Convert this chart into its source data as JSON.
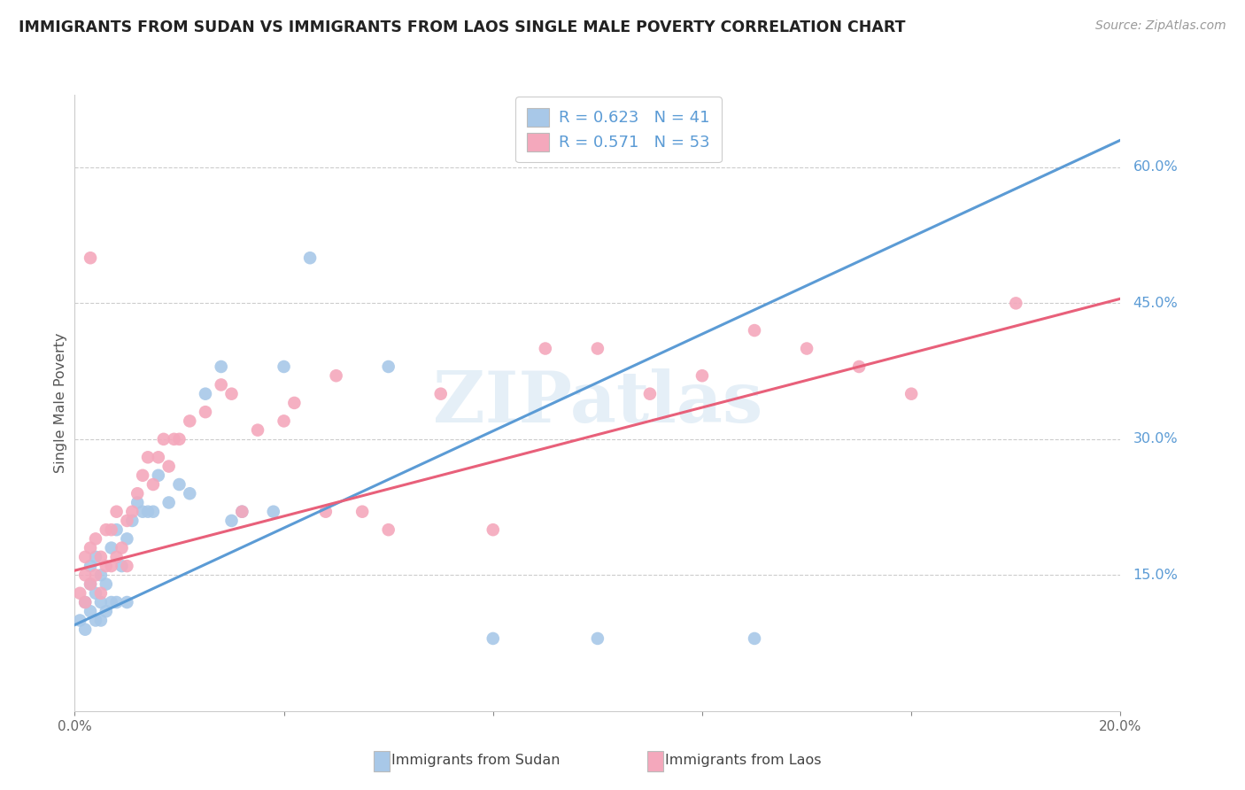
{
  "title": "IMMIGRANTS FROM SUDAN VS IMMIGRANTS FROM LAOS SINGLE MALE POVERTY CORRELATION CHART",
  "source": "Source: ZipAtlas.com",
  "ylabel": "Single Male Poverty",
  "xlim": [
    0.0,
    0.2
  ],
  "ylim": [
    0.0,
    0.68
  ],
  "ytick_labels": [
    "15.0%",
    "30.0%",
    "45.0%",
    "60.0%"
  ],
  "ytick_values": [
    0.15,
    0.3,
    0.45,
    0.6
  ],
  "background_color": "#ffffff",
  "watermark": "ZIPatlas",
  "sudan_color": "#a8c8e8",
  "laos_color": "#f4a8bc",
  "sudan_line_color": "#5b9bd5",
  "laos_line_color": "#e8607a",
  "dashed_line_color": "#c0c0c0",
  "R_sudan": 0.623,
  "N_sudan": 41,
  "R_laos": 0.571,
  "N_laos": 53,
  "sudan_line_x0": 0.0,
  "sudan_line_y0": 0.095,
  "sudan_line_x1": 0.2,
  "sudan_line_y1": 0.63,
  "laos_line_x0": 0.0,
  "laos_line_y0": 0.155,
  "laos_line_x1": 0.2,
  "laos_line_y1": 0.455,
  "sudan_x": [
    0.001,
    0.002,
    0.002,
    0.003,
    0.003,
    0.003,
    0.004,
    0.004,
    0.004,
    0.005,
    0.005,
    0.005,
    0.006,
    0.006,
    0.007,
    0.007,
    0.008,
    0.008,
    0.009,
    0.01,
    0.01,
    0.011,
    0.012,
    0.013,
    0.014,
    0.015,
    0.016,
    0.018,
    0.02,
    0.022,
    0.025,
    0.028,
    0.03,
    0.032,
    0.038,
    0.04,
    0.045,
    0.06,
    0.08,
    0.1,
    0.13
  ],
  "sudan_y": [
    0.1,
    0.09,
    0.12,
    0.11,
    0.14,
    0.16,
    0.1,
    0.13,
    0.17,
    0.1,
    0.12,
    0.15,
    0.11,
    0.14,
    0.12,
    0.18,
    0.12,
    0.2,
    0.16,
    0.12,
    0.19,
    0.21,
    0.23,
    0.22,
    0.22,
    0.22,
    0.26,
    0.23,
    0.25,
    0.24,
    0.35,
    0.38,
    0.21,
    0.22,
    0.22,
    0.38,
    0.5,
    0.38,
    0.08,
    0.08,
    0.08
  ],
  "laos_x": [
    0.001,
    0.002,
    0.002,
    0.003,
    0.003,
    0.004,
    0.004,
    0.005,
    0.005,
    0.006,
    0.006,
    0.007,
    0.007,
    0.008,
    0.008,
    0.009,
    0.01,
    0.01,
    0.011,
    0.012,
    0.013,
    0.014,
    0.015,
    0.016,
    0.017,
    0.018,
    0.019,
    0.02,
    0.022,
    0.025,
    0.028,
    0.03,
    0.032,
    0.035,
    0.04,
    0.042,
    0.048,
    0.05,
    0.055,
    0.06,
    0.07,
    0.08,
    0.09,
    0.1,
    0.11,
    0.12,
    0.13,
    0.14,
    0.15,
    0.16,
    0.002,
    0.003,
    0.18
  ],
  "laos_y": [
    0.13,
    0.15,
    0.17,
    0.14,
    0.18,
    0.15,
    0.19,
    0.13,
    0.17,
    0.16,
    0.2,
    0.16,
    0.2,
    0.17,
    0.22,
    0.18,
    0.16,
    0.21,
    0.22,
    0.24,
    0.26,
    0.28,
    0.25,
    0.28,
    0.3,
    0.27,
    0.3,
    0.3,
    0.32,
    0.33,
    0.36,
    0.35,
    0.22,
    0.31,
    0.32,
    0.34,
    0.22,
    0.37,
    0.22,
    0.2,
    0.35,
    0.2,
    0.4,
    0.4,
    0.35,
    0.37,
    0.42,
    0.4,
    0.38,
    0.35,
    0.12,
    0.5,
    0.45
  ]
}
